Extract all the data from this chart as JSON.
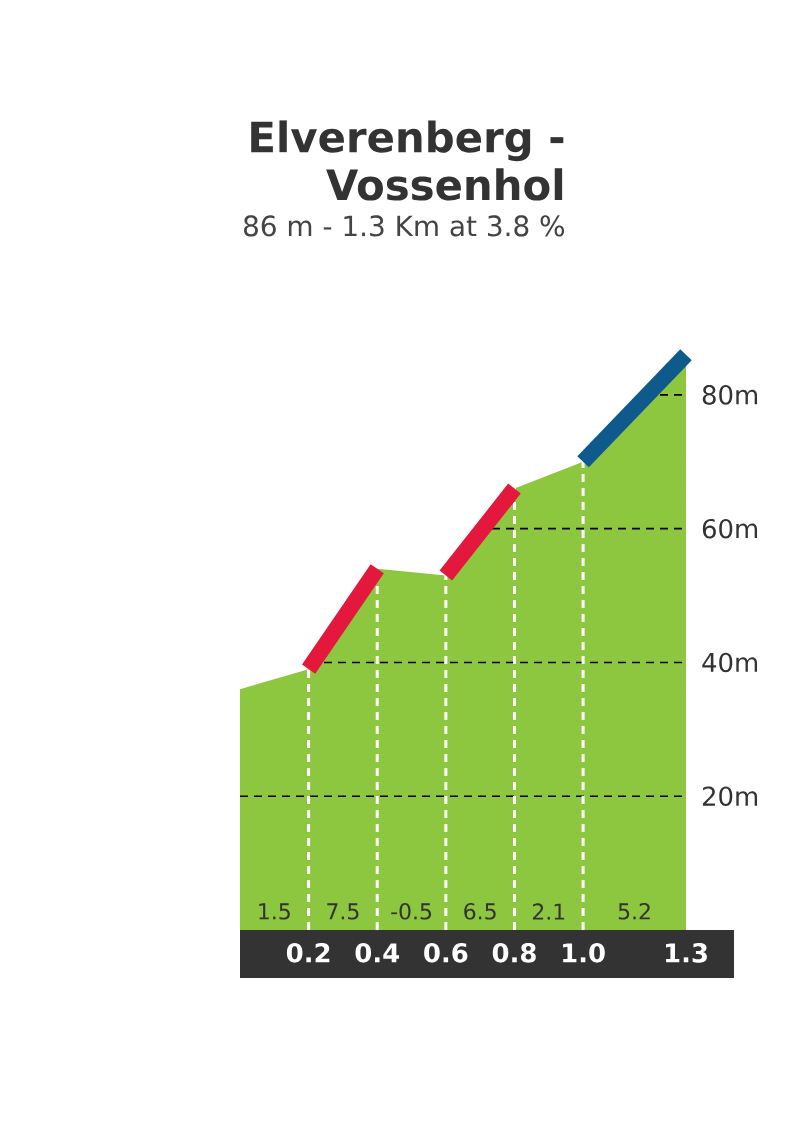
{
  "chart_data": {
    "type": "area",
    "title": "Elverenberg - Vossenhol",
    "subtitle": "86 m - 1.3 Km at 3.8 %",
    "series": [
      {
        "color": "#8dc63f",
        "x": [
          0,
          0.2,
          0.4,
          0.6,
          0.8,
          1.0,
          1.3
        ],
        "values": [
          36,
          39,
          54,
          53,
          66,
          70,
          86
        ]
      },
      {
        "type": "line",
        "color": "#e4173d",
        "x": [
          0.2,
          0.4,
          0.5,
          0.6,
          0.8
        ],
        "values": [
          39,
          54,
          null,
          53,
          66
        ]
      },
      {
        "type": "line",
        "color": "#0f5a8c",
        "x": [
          1.0,
          1.3
        ],
        "values": [
          70,
          86
        ]
      }
    ],
    "xlim": [
      0,
      1.3
    ],
    "xticks": [
      0.2,
      0.4,
      0.6,
      0.8,
      {
        "value": 1.0,
        "label": "1.0"
      },
      1.3
    ],
    "ylim": [
      0,
      90
    ],
    "yticks": [
      {
        "value": 20,
        "label": "20m"
      },
      {
        "value": 40,
        "label": "40m"
      },
      {
        "value": 60,
        "label": "60m"
      },
      {
        "value": 80,
        "label": "80m"
      }
    ],
    "grid": true,
    "annotations": [
      "1.5",
      "7.5",
      "-0.5",
      "6.5",
      "2.1",
      "5.2"
    ]
  }
}
